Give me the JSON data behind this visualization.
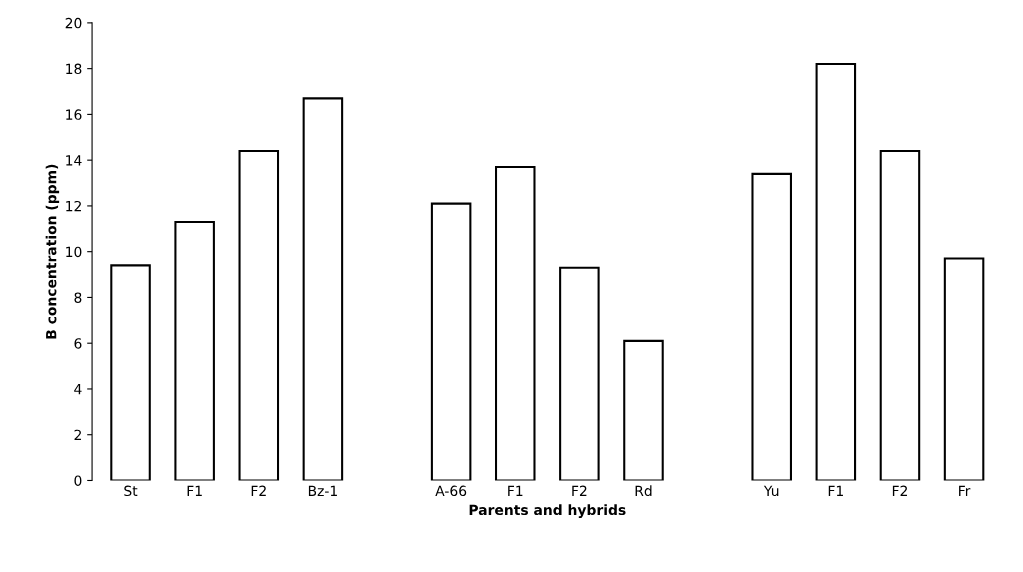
{
  "chart_data": {
    "type": "bar",
    "xlabel": "Parents and hybrids",
    "ylabel": "B concentration (ppm)",
    "categories": [
      "St",
      "F1",
      "F2",
      "Bz-1",
      null,
      "A-66",
      "F1",
      "F2",
      "Rd",
      null,
      "Yu",
      "F1",
      "F2",
      "Fr"
    ],
    "values": [
      9.4,
      11.3,
      14.4,
      16.7,
      null,
      12.1,
      13.7,
      9.3,
      6.1,
      null,
      13.4,
      18.2,
      14.4,
      9.7
    ],
    "color": "#ffffff",
    "ylim": [
      0,
      20
    ],
    "yticks": [
      0,
      2,
      4,
      6,
      8,
      10,
      12,
      14,
      16,
      18,
      20
    ],
    "grid": false,
    "legend": false
  }
}
